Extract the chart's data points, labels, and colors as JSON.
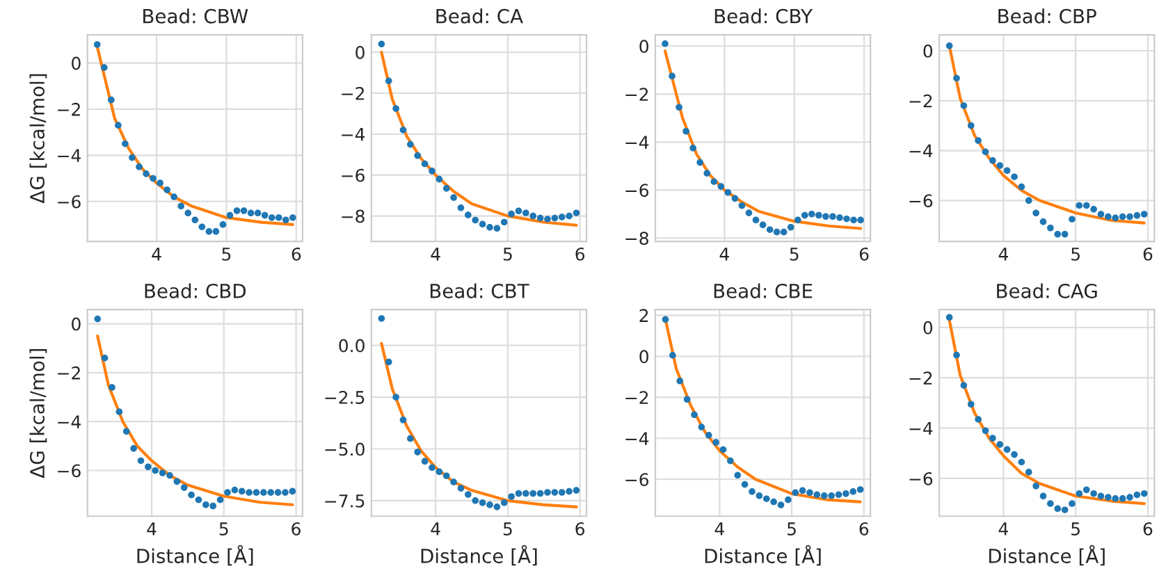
{
  "chart_data": [
    {
      "type": "scatter",
      "title": "Bead: CBW",
      "ylabel": "ΔG [kcal/mol]",
      "xlim": [
        3.01,
        6.09
      ],
      "ylim": [
        -7.73,
        1.22
      ],
      "xticks": [
        4,
        5,
        6
      ],
      "yticks": [
        {
          "value": -6,
          "label": "−6"
        },
        {
          "value": -4,
          "label": "−4"
        },
        {
          "value": -2,
          "label": "−2"
        },
        0
      ],
      "grid": true,
      "series": [
        {
          "type": "scatter",
          "marker": "circle",
          "color": "#1f77b4",
          "x": [
            3.15,
            3.25,
            3.35,
            3.45,
            3.55,
            3.65,
            3.75,
            3.85,
            3.95,
            4.05,
            4.15,
            4.25,
            4.35,
            4.45,
            4.55,
            4.65,
            4.75,
            4.85,
            4.95,
            5.05,
            5.15,
            5.25,
            5.35,
            5.45,
            5.55,
            5.65,
            5.75,
            5.85,
            5.95
          ],
          "values": [
            0.8,
            -0.2,
            -1.6,
            -2.7,
            -3.5,
            -4.1,
            -4.5,
            -4.8,
            -5.0,
            -5.2,
            -5.5,
            -5.8,
            -6.2,
            -6.5,
            -6.8,
            -7.1,
            -7.3,
            -7.3,
            -7.0,
            -6.6,
            -6.4,
            -6.4,
            -6.5,
            -6.5,
            -6.6,
            -6.7,
            -6.7,
            -6.8,
            -6.7
          ]
        },
        {
          "type": "line",
          "marker": "none",
          "color": "#ff7f0e",
          "x": [
            3.15,
            3.4,
            3.6,
            3.8,
            4.0,
            4.25,
            4.5,
            5.0,
            5.5,
            5.95
          ],
          "values": [
            0.7,
            -2.4,
            -3.7,
            -4.6,
            -5.2,
            -5.8,
            -6.2,
            -6.7,
            -6.9,
            -7.0
          ]
        }
      ]
    },
    {
      "type": "scatter",
      "title": "Bead: CA",
      "xlim": [
        3.11,
        6.09
      ],
      "ylim": [
        -9.24,
        0.85
      ],
      "xticks": [
        4,
        5,
        6
      ],
      "yticks": [
        {
          "value": -8,
          "label": "−8"
        },
        {
          "value": -6,
          "label": "−6"
        },
        {
          "value": -4,
          "label": "−4"
        },
        {
          "value": -2,
          "label": "−2"
        },
        0
      ],
      "grid": true,
      "series": [
        {
          "type": "scatter",
          "marker": "circle",
          "color": "#1f77b4",
          "x": [
            3.25,
            3.35,
            3.45,
            3.55,
            3.65,
            3.75,
            3.85,
            3.95,
            4.05,
            4.15,
            4.25,
            4.35,
            4.45,
            4.55,
            4.65,
            4.75,
            4.85,
            4.95,
            5.05,
            5.15,
            5.25,
            5.35,
            5.45,
            5.55,
            5.65,
            5.75,
            5.85,
            5.95
          ],
          "values": [
            0.4,
            -1.4,
            -2.75,
            -3.8,
            -4.5,
            -5.05,
            -5.45,
            -5.8,
            -6.2,
            -6.65,
            -7.1,
            -7.6,
            -7.95,
            -8.2,
            -8.4,
            -8.55,
            -8.6,
            -8.3,
            -7.9,
            -7.75,
            -7.85,
            -8.0,
            -8.1,
            -8.15,
            -8.1,
            -8.05,
            -8.0,
            -7.85
          ]
        },
        {
          "type": "line",
          "marker": "none",
          "color": "#ff7f0e",
          "x": [
            3.25,
            3.4,
            3.6,
            3.8,
            4.0,
            4.25,
            4.5,
            5.0,
            5.5,
            5.95
          ],
          "values": [
            0.0,
            -2.3,
            -4.1,
            -5.2,
            -6.0,
            -6.8,
            -7.4,
            -8.0,
            -8.3,
            -8.45
          ]
        }
      ]
    },
    {
      "type": "scatter",
      "title": "Bead: CBY",
      "xlim": [
        3.01,
        6.09
      ],
      "ylim": [
        -8.14,
        0.47
      ],
      "xticks": [
        4,
        5,
        6
      ],
      "yticks": [
        {
          "value": -8,
          "label": "−8"
        },
        {
          "value": -6,
          "label": "−6"
        },
        {
          "value": -4,
          "label": "−4"
        },
        {
          "value": -2,
          "label": "−2"
        },
        0
      ],
      "grid": true,
      "series": [
        {
          "type": "scatter",
          "marker": "circle",
          "color": "#1f77b4",
          "x": [
            3.15,
            3.25,
            3.35,
            3.45,
            3.55,
            3.65,
            3.75,
            3.85,
            3.95,
            4.05,
            4.15,
            4.25,
            4.35,
            4.45,
            4.55,
            4.65,
            4.75,
            4.85,
            4.95,
            5.05,
            5.15,
            5.25,
            5.35,
            5.45,
            5.55,
            5.65,
            5.75,
            5.85,
            5.95
          ],
          "values": [
            0.1,
            -1.25,
            -2.55,
            -3.55,
            -4.25,
            -4.85,
            -5.3,
            -5.65,
            -5.85,
            -6.1,
            -6.35,
            -6.65,
            -6.95,
            -7.25,
            -7.45,
            -7.65,
            -7.75,
            -7.75,
            -7.55,
            -7.25,
            -7.05,
            -7.0,
            -7.05,
            -7.1,
            -7.1,
            -7.15,
            -7.2,
            -7.25,
            -7.25
          ]
        },
        {
          "type": "line",
          "marker": "none",
          "color": "#ff7f0e",
          "x": [
            3.15,
            3.4,
            3.6,
            3.8,
            4.0,
            4.25,
            4.5,
            5.0,
            5.5,
            5.95
          ],
          "values": [
            -0.2,
            -3.0,
            -4.5,
            -5.4,
            -6.0,
            -6.5,
            -6.9,
            -7.3,
            -7.5,
            -7.6
          ]
        }
      ]
    },
    {
      "type": "scatter",
      "title": "Bead: CBP",
      "xlim": [
        3.11,
        6.09
      ],
      "ylim": [
        -7.64,
        0.64
      ],
      "xticks": [
        4,
        5,
        6
      ],
      "yticks": [
        {
          "value": -6,
          "label": "−6"
        },
        {
          "value": -4,
          "label": "−4"
        },
        {
          "value": -2,
          "label": "−2"
        },
        0
      ],
      "grid": true,
      "series": [
        {
          "type": "scatter",
          "marker": "circle",
          "color": "#1f77b4",
          "x": [
            3.25,
            3.35,
            3.45,
            3.55,
            3.65,
            3.75,
            3.85,
            3.95,
            4.05,
            4.15,
            4.25,
            4.35,
            4.45,
            4.55,
            4.65,
            4.75,
            4.85,
            4.95,
            5.05,
            5.15,
            5.25,
            5.35,
            5.45,
            5.55,
            5.65,
            5.75,
            5.85,
            5.95
          ],
          "values": [
            0.2,
            -1.1,
            -2.2,
            -3.0,
            -3.6,
            -4.05,
            -4.4,
            -4.6,
            -4.8,
            -5.05,
            -5.45,
            -6.0,
            -6.5,
            -6.85,
            -7.1,
            -7.35,
            -7.35,
            -6.75,
            -6.2,
            -6.2,
            -6.35,
            -6.55,
            -6.65,
            -6.7,
            -6.65,
            -6.65,
            -6.6,
            -6.55
          ]
        },
        {
          "type": "line",
          "marker": "none",
          "color": "#ff7f0e",
          "x": [
            3.25,
            3.4,
            3.6,
            3.8,
            4.0,
            4.25,
            4.5,
            5.0,
            5.5,
            5.95
          ],
          "values": [
            0.2,
            -1.9,
            -3.4,
            -4.3,
            -5.0,
            -5.6,
            -6.0,
            -6.5,
            -6.8,
            -6.9
          ]
        }
      ]
    },
    {
      "type": "scatter",
      "title": "Bead: CBD",
      "xlabel": "Distance [Å]",
      "ylabel": "ΔG [kcal/mol]",
      "xlim": [
        3.11,
        6.09
      ],
      "ylim": [
        -7.87,
        0.58
      ],
      "xticks": [
        4,
        5,
        6
      ],
      "yticks": [
        {
          "value": -6,
          "label": "−6"
        },
        {
          "value": -4,
          "label": "−4"
        },
        {
          "value": -2,
          "label": "−2"
        },
        0
      ],
      "grid": true,
      "series": [
        {
          "type": "scatter",
          "marker": "circle",
          "color": "#1f77b4",
          "x": [
            3.25,
            3.35,
            3.45,
            3.55,
            3.65,
            3.75,
            3.85,
            3.95,
            4.05,
            4.15,
            4.25,
            4.35,
            4.45,
            4.55,
            4.65,
            4.75,
            4.85,
            4.95,
            5.05,
            5.15,
            5.25,
            5.35,
            5.45,
            5.55,
            5.65,
            5.75,
            5.85,
            5.95
          ],
          "values": [
            0.2,
            -1.4,
            -2.6,
            -3.6,
            -4.4,
            -5.1,
            -5.6,
            -5.85,
            -6.0,
            -6.1,
            -6.2,
            -6.45,
            -6.7,
            -7.0,
            -7.2,
            -7.4,
            -7.45,
            -7.2,
            -6.9,
            -6.8,
            -6.85,
            -6.9,
            -6.9,
            -6.9,
            -6.9,
            -6.9,
            -6.9,
            -6.85
          ]
        },
        {
          "type": "line",
          "marker": "none",
          "color": "#ff7f0e",
          "x": [
            3.25,
            3.4,
            3.6,
            3.8,
            4.0,
            4.25,
            4.5,
            5.0,
            5.5,
            5.95
          ],
          "values": [
            -0.5,
            -2.5,
            -4.0,
            -5.0,
            -5.6,
            -6.2,
            -6.6,
            -7.05,
            -7.3,
            -7.4
          ]
        }
      ]
    },
    {
      "type": "scatter",
      "title": "Bead: CBT",
      "xlabel": "Distance [Å]",
      "xlim": [
        3.11,
        6.09
      ],
      "ylim": [
        -8.25,
        1.73
      ],
      "xticks": [
        4,
        5,
        6
      ],
      "yticks": [
        {
          "value": -7.5,
          "label": "−7.5"
        },
        {
          "value": -5,
          "label": "−5.0"
        },
        {
          "value": -2.5,
          "label": "−2.5"
        },
        {
          "value": 0,
          "label": "0.0"
        }
      ],
      "grid": true,
      "series": [
        {
          "type": "scatter",
          "marker": "circle",
          "color": "#1f77b4",
          "x": [
            3.25,
            3.35,
            3.45,
            3.55,
            3.65,
            3.75,
            3.85,
            3.95,
            4.05,
            4.15,
            4.25,
            4.35,
            4.45,
            4.55,
            4.65,
            4.75,
            4.85,
            4.95,
            5.05,
            5.15,
            5.25,
            5.35,
            5.45,
            5.55,
            5.65,
            5.75,
            5.85,
            5.95
          ],
          "values": [
            1.3,
            -0.8,
            -2.5,
            -3.6,
            -4.5,
            -5.15,
            -5.6,
            -5.9,
            -6.1,
            -6.3,
            -6.6,
            -6.9,
            -7.2,
            -7.5,
            -7.6,
            -7.7,
            -7.8,
            -7.6,
            -7.3,
            -7.15,
            -7.15,
            -7.15,
            -7.15,
            -7.1,
            -7.1,
            -7.1,
            -7.05,
            -7.0
          ]
        },
        {
          "type": "line",
          "marker": "none",
          "color": "#ff7f0e",
          "x": [
            3.25,
            3.4,
            3.6,
            3.8,
            4.0,
            4.25,
            4.5,
            5.0,
            5.5,
            5.95
          ],
          "values": [
            0.1,
            -2.1,
            -3.9,
            -5.1,
            -5.9,
            -6.6,
            -7.0,
            -7.5,
            -7.7,
            -7.8
          ]
        }
      ]
    },
    {
      "type": "scatter",
      "title": "Bead: CBE",
      "xlabel": "Distance [Å]",
      "xlim": [
        3.11,
        6.09
      ],
      "ylim": [
        -7.8,
        2.28
      ],
      "xticks": [
        4,
        5,
        6
      ],
      "yticks": [
        {
          "value": -6,
          "label": "−6"
        },
        {
          "value": -4,
          "label": "−4"
        },
        {
          "value": -2,
          "label": "−2"
        },
        0,
        2
      ],
      "grid": true,
      "series": [
        {
          "type": "scatter",
          "marker": "circle",
          "color": "#1f77b4",
          "x": [
            3.25,
            3.35,
            3.45,
            3.55,
            3.65,
            3.75,
            3.85,
            3.95,
            4.05,
            4.15,
            4.25,
            4.35,
            4.45,
            4.55,
            4.65,
            4.75,
            4.85,
            4.95,
            5.05,
            5.15,
            5.25,
            5.35,
            5.45,
            5.55,
            5.65,
            5.75,
            5.85,
            5.95
          ],
          "values": [
            1.8,
            0.05,
            -1.2,
            -2.1,
            -2.85,
            -3.45,
            -3.85,
            -4.2,
            -4.55,
            -5.1,
            -5.8,
            -6.25,
            -6.6,
            -6.8,
            -6.95,
            -7.1,
            -7.25,
            -7.0,
            -6.65,
            -6.55,
            -6.65,
            -6.75,
            -6.8,
            -6.8,
            -6.75,
            -6.7,
            -6.6,
            -6.5
          ]
        },
        {
          "type": "line",
          "marker": "none",
          "color": "#ff7f0e",
          "x": [
            3.25,
            3.4,
            3.6,
            3.8,
            4.0,
            4.25,
            4.5,
            5.0,
            5.5,
            5.95
          ],
          "values": [
            1.8,
            -0.6,
            -2.4,
            -3.7,
            -4.6,
            -5.4,
            -6.0,
            -6.7,
            -7.0,
            -7.1
          ]
        }
      ]
    },
    {
      "type": "scatter",
      "title": "Bead: CAG",
      "xlabel": "Distance [Å]",
      "xlim": [
        3.11,
        6.09
      ],
      "ylim": [
        -7.5,
        0.71
      ],
      "xticks": [
        4,
        5,
        6
      ],
      "yticks": [
        {
          "value": -6,
          "label": "−6"
        },
        {
          "value": -4,
          "label": "−4"
        },
        {
          "value": -2,
          "label": "−2"
        },
        0
      ],
      "grid": true,
      "series": [
        {
          "type": "scatter",
          "marker": "circle",
          "color": "#1f77b4",
          "x": [
            3.25,
            3.35,
            3.45,
            3.55,
            3.65,
            3.75,
            3.85,
            3.95,
            4.05,
            4.15,
            4.25,
            4.35,
            4.45,
            4.55,
            4.65,
            4.75,
            4.85,
            4.95,
            5.05,
            5.15,
            5.25,
            5.35,
            5.45,
            5.55,
            5.65,
            5.75,
            5.85,
            5.95
          ],
          "values": [
            0.4,
            -1.1,
            -2.3,
            -3.05,
            -3.65,
            -4.1,
            -4.4,
            -4.65,
            -4.85,
            -5.05,
            -5.35,
            -5.75,
            -6.3,
            -6.7,
            -7.0,
            -7.2,
            -7.25,
            -7.0,
            -6.6,
            -6.45,
            -6.6,
            -6.7,
            -6.75,
            -6.8,
            -6.8,
            -6.75,
            -6.65,
            -6.6
          ]
        },
        {
          "type": "line",
          "marker": "none",
          "color": "#ff7f0e",
          "x": [
            3.25,
            3.4,
            3.6,
            3.8,
            4.0,
            4.25,
            4.5,
            5.0,
            5.5,
            5.95
          ],
          "values": [
            0.3,
            -1.9,
            -3.4,
            -4.4,
            -5.1,
            -5.8,
            -6.2,
            -6.7,
            -6.9,
            -7.0
          ]
        }
      ]
    }
  ]
}
